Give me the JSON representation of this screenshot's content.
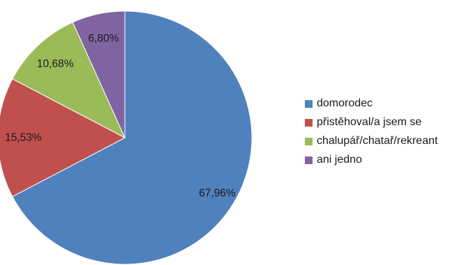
{
  "chart_data": {
    "type": "pie",
    "title": "",
    "categories": [
      "domorodec",
      "přistěhoval/a jsem se",
      "chalupář/chatař/rekreant",
      "ani jedno"
    ],
    "values": [
      67.96,
      15.53,
      10.68,
      6.8
    ],
    "value_labels": [
      "67,96%",
      "15,53%",
      "10,68%",
      "6,80%"
    ],
    "colors": [
      "#4F81BD",
      "#C0504D",
      "#9BBB59",
      "#8064A2"
    ],
    "start": "12 o'clock",
    "direction": "clockwise",
    "legend": "right"
  }
}
